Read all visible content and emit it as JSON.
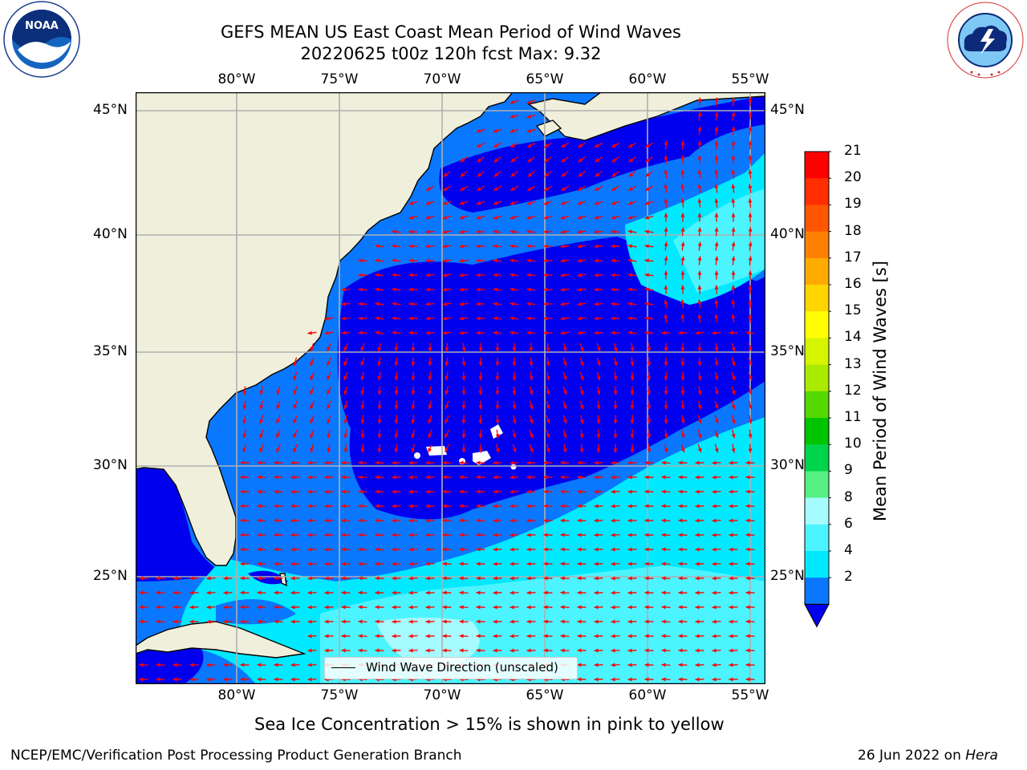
{
  "title": {
    "line1": "GEFS MEAN US East Coast Mean Period of Wind Waves",
    "line2": "20220625 t00z 120h fcst   Max: 9.32"
  },
  "logos": {
    "left": {
      "name": "NOAA",
      "ring_text": "NATIONAL OCEANIC AND ATMOSPHERIC ADMINISTRATION · U.S. DEPARTMENT OF COMMERCE"
    },
    "right": {
      "name": "National Weather Service",
      "ring_text": "NATIONAL WEATHER SERVICE"
    }
  },
  "map": {
    "lon_labels": [
      "80°W",
      "75°W",
      "70°W",
      "65°W",
      "60°W",
      "55°W"
    ],
    "lat_labels": [
      "45°N",
      "40°N",
      "35°N",
      "30°N",
      "25°N"
    ],
    "legend": "Wind Wave Direction (unscaled)",
    "colors": {
      "land": "#efefdc",
      "c_lt2": "#0000ee",
      "c2_4": "#0a77ff",
      "c4_6": "#00e9ff",
      "c6_8": "#4cf4ff",
      "c8_9": "#a6fbff",
      "arrow": "#ff0000"
    }
  },
  "colorbar": {
    "label": "Mean Period of Wind Waves [s]",
    "ticks": [
      "21",
      "20",
      "19",
      "18",
      "17",
      "16",
      "15",
      "14",
      "13",
      "12",
      "11",
      "10",
      "9",
      "8",
      "6",
      "4",
      "2"
    ],
    "colors": [
      "#ff0000",
      "#ff2d00",
      "#ff5500",
      "#ff8000",
      "#ffaa00",
      "#ffd500",
      "#ffff00",
      "#d5f400",
      "#aaea00",
      "#55d800",
      "#00c400",
      "#00d44a",
      "#55ef82",
      "#a6fbff",
      "#4cf4ff",
      "#00e9ff",
      "#0a77ff"
    ],
    "under_color": "#0000ee"
  },
  "caption": "Sea Ice Concentration > 15% is shown in pink to yellow",
  "footer": {
    "left": "NCEP/EMC/Verification Post Processing Product Generation Branch",
    "date": "26 Jun 2022 on",
    "machine": "Hera"
  }
}
